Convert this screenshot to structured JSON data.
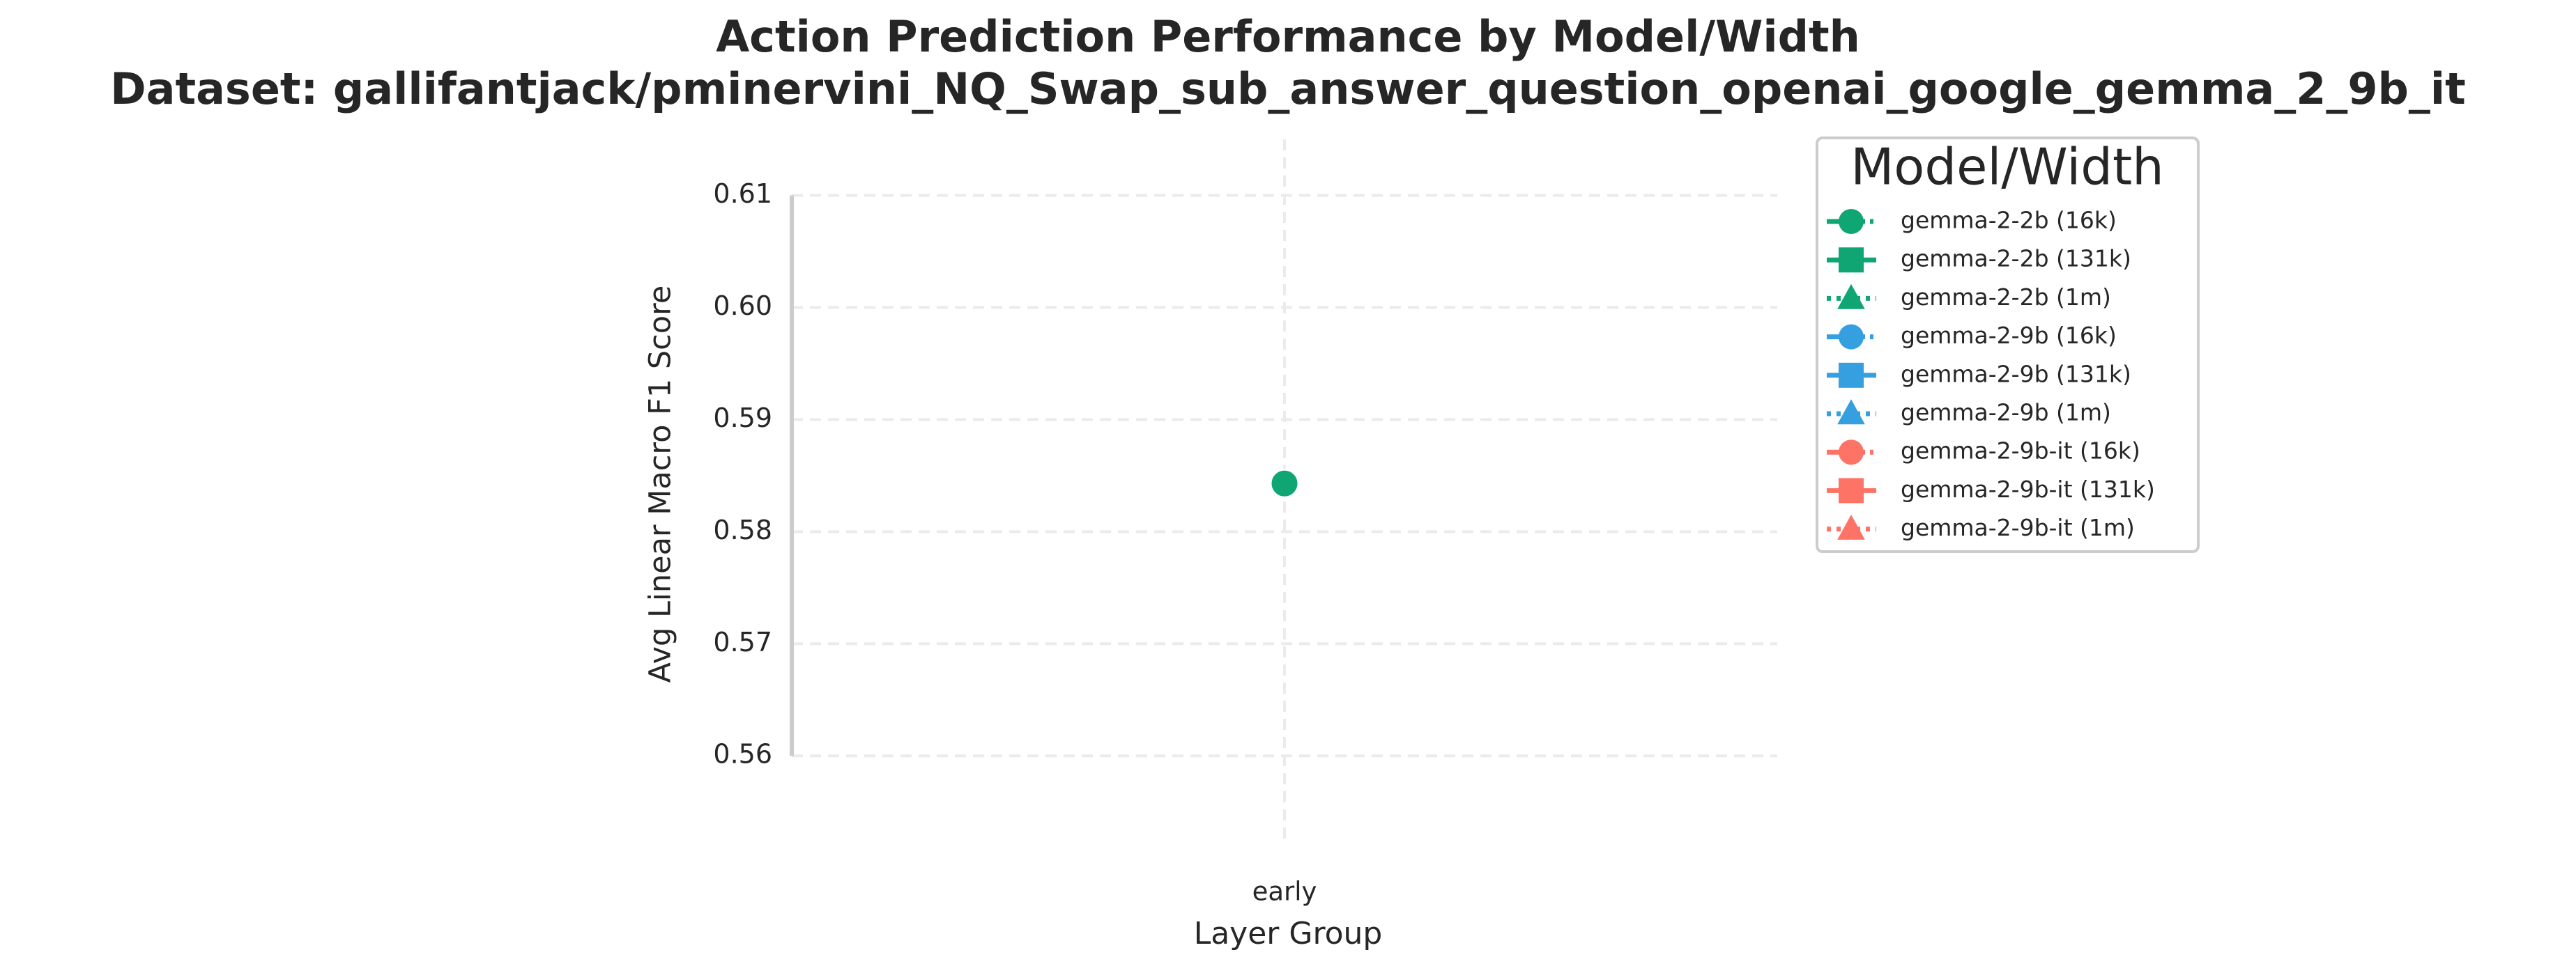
{
  "chart_data": {
    "type": "line",
    "title": "Action Prediction Performance by Model/Width",
    "subtitle": "Dataset: gallifantjack/pminervini_NQ_Swap_sub_answer_question_openai_google_gemma_2_9b_it",
    "xlabel": "Layer Group",
    "ylabel": "Avg Linear Macro F1 Score",
    "categories": [
      "early"
    ],
    "series": [
      {
        "name": "gemma-2-2b (16k)",
        "color": "#10a674",
        "linestyle": "dashdot",
        "marker": "circle",
        "values": [
          0.5843
        ]
      },
      {
        "name": "gemma-2-2b (131k)",
        "color": "#10a674",
        "linestyle": "solid",
        "marker": "square",
        "values": [
          null
        ]
      },
      {
        "name": "gemma-2-2b (1m)",
        "color": "#10a674",
        "linestyle": "dotted",
        "marker": "triangle",
        "values": [
          null
        ]
      },
      {
        "name": "gemma-2-9b (16k)",
        "color": "#369fdf",
        "linestyle": "dashdot",
        "marker": "circle",
        "values": [
          null
        ]
      },
      {
        "name": "gemma-2-9b (131k)",
        "color": "#369fdf",
        "linestyle": "solid",
        "marker": "square",
        "values": [
          null
        ]
      },
      {
        "name": "gemma-2-9b (1m)",
        "color": "#369fdf",
        "linestyle": "dotted",
        "marker": "triangle",
        "values": [
          null
        ]
      },
      {
        "name": "gemma-2-9b-it (16k)",
        "color": "#fd7466",
        "linestyle": "dashdot",
        "marker": "circle",
        "values": [
          null
        ]
      },
      {
        "name": "gemma-2-9b-it (131k)",
        "color": "#fd7466",
        "linestyle": "solid",
        "marker": "square",
        "values": [
          null
        ]
      },
      {
        "name": "gemma-2-9b-it (1m)",
        "color": "#fd7466",
        "linestyle": "dotted",
        "marker": "triangle",
        "values": [
          null
        ]
      }
    ],
    "ylim": [
      0.552,
      0.615
    ],
    "yticks": [
      0.56,
      0.57,
      0.58,
      0.59,
      {
        "value": 0.6,
        "label": "0.60"
      },
      0.61
    ],
    "grid": true,
    "legend": {
      "title": "Model/Width",
      "position": "outside right"
    }
  }
}
